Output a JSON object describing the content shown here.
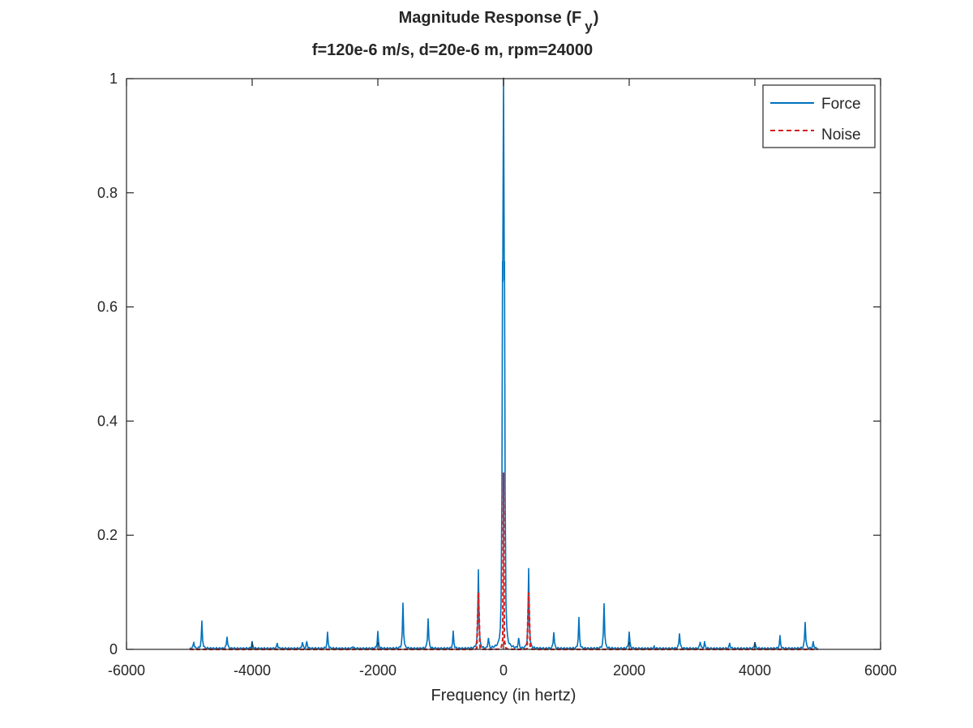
{
  "chart_data": {
    "type": "line",
    "title_main": "Magnitude Response (F",
    "title_sub": "y",
    "title_close": ")",
    "subtitle": "f=120e-6 m/s, d=20e-6 m, rpm=24000",
    "xlabel": "Frequency (in hertz)",
    "ylabel": "",
    "xlim": [
      -6000,
      6000
    ],
    "ylim": [
      0,
      1
    ],
    "xticks": [
      -6000,
      -4000,
      -2000,
      0,
      2000,
      4000,
      6000
    ],
    "xtick_labels": [
      "-6000",
      "-4000",
      "-2000",
      "0",
      "2000",
      "4000",
      "6000"
    ],
    "yticks": [
      0,
      0.2,
      0.4,
      0.6,
      0.8,
      1
    ],
    "ytick_labels": [
      "0",
      "0.2",
      "0.4",
      "0.6",
      "0.8",
      "1"
    ],
    "grid": false,
    "legend_position": "top-right",
    "freq_range": [
      -5000,
      5000
    ],
    "series": [
      {
        "name": "Force",
        "color": "#0072bd",
        "style": "solid",
        "peaks": [
          {
            "x": 0,
            "y": 1.0
          },
          {
            "x": -15,
            "y": 0.68
          },
          {
            "x": 15,
            "y": 0.68
          },
          {
            "x": -400,
            "y": 0.14
          },
          {
            "x": 400,
            "y": 0.14
          },
          {
            "x": -1600,
            "y": 0.08
          },
          {
            "x": 1600,
            "y": 0.08
          },
          {
            "x": -4800,
            "y": 0.048
          },
          {
            "x": 4800,
            "y": 0.048
          },
          {
            "x": -1200,
            "y": 0.054
          },
          {
            "x": 1200,
            "y": 0.054
          },
          {
            "x": -2000,
            "y": 0.03
          },
          {
            "x": 2000,
            "y": 0.03
          },
          {
            "x": -2800,
            "y": 0.028
          },
          {
            "x": 2800,
            "y": 0.028
          },
          {
            "x": -800,
            "y": 0.03
          },
          {
            "x": 800,
            "y": 0.03
          },
          {
            "x": -4400,
            "y": 0.022
          },
          {
            "x": 4400,
            "y": 0.022
          },
          {
            "x": -240,
            "y": 0.02
          },
          {
            "x": 240,
            "y": 0.02
          },
          {
            "x": -3600,
            "y": 0.01
          },
          {
            "x": 3600,
            "y": 0.01
          },
          {
            "x": -4000,
            "y": 0.012
          },
          {
            "x": 4000,
            "y": 0.012
          },
          {
            "x": -3200,
            "y": 0.012
          },
          {
            "x": 3200,
            "y": 0.012
          },
          {
            "x": -3130,
            "y": 0.013
          },
          {
            "x": 3130,
            "y": 0.013
          },
          {
            "x": -4930,
            "y": 0.012
          },
          {
            "x": 4930,
            "y": 0.012
          },
          {
            "x": -2400,
            "y": 0.004
          },
          {
            "x": 2400,
            "y": 0.004
          }
        ]
      },
      {
        "name": "Noise",
        "color": "#d62020",
        "style": "dashed",
        "peaks": [
          {
            "x": 0,
            "y": 0.31
          },
          {
            "x": -400,
            "y": 0.1
          },
          {
            "x": 400,
            "y": 0.1
          }
        ]
      }
    ]
  }
}
